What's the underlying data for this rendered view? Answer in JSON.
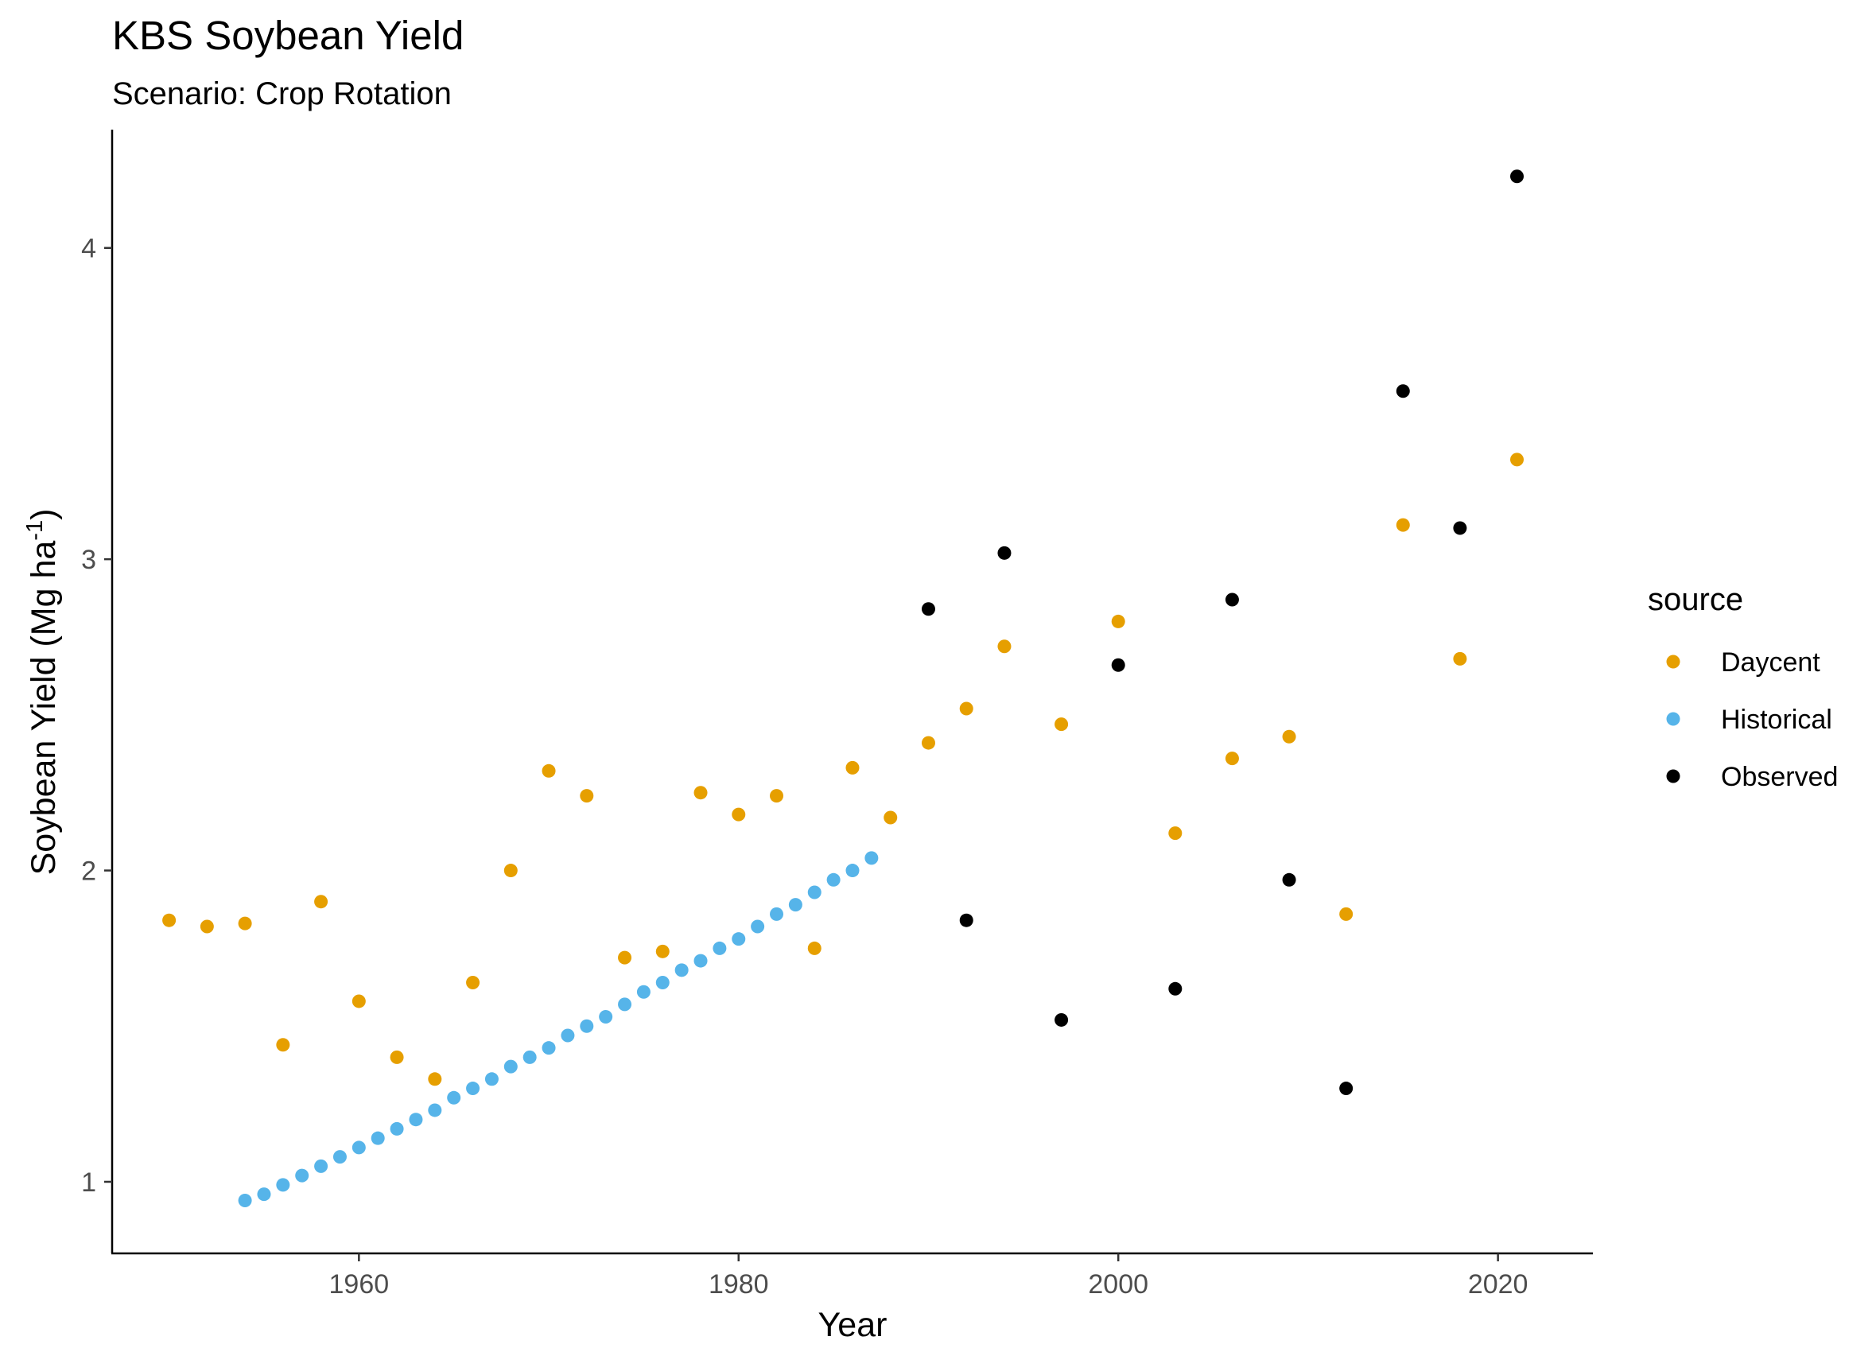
{
  "chart_data": {
    "type": "scatter",
    "title": "KBS Soybean Yield",
    "subtitle": "Scenario: Crop Rotation",
    "xlabel": "Year",
    "ylabel": {
      "main": "Soybean Yield (Mg ha",
      "superscript": "-1",
      "close": ")"
    },
    "xlim": [
      1947,
      2025
    ],
    "ylim": [
      0.77,
      4.38
    ],
    "xticks": [
      1960,
      1980,
      2000,
      2020
    ],
    "yticks": [
      1,
      2,
      3,
      4
    ],
    "grid": false,
    "legend": {
      "title": "source",
      "position": "right"
    },
    "series": [
      {
        "name": "Daycent",
        "color": "#E69F00",
        "points": [
          [
            1950,
            1.84
          ],
          [
            1952,
            1.82
          ],
          [
            1954,
            1.83
          ],
          [
            1956,
            1.44
          ],
          [
            1958,
            1.9
          ],
          [
            1960,
            1.58
          ],
          [
            1962,
            1.4
          ],
          [
            1964,
            1.33
          ],
          [
            1966,
            1.64
          ],
          [
            1968,
            2.0
          ],
          [
            1970,
            2.32
          ],
          [
            1972,
            2.24
          ],
          [
            1974,
            1.72
          ],
          [
            1976,
            1.74
          ],
          [
            1978,
            2.25
          ],
          [
            1980,
            2.18
          ],
          [
            1982,
            2.24
          ],
          [
            1984,
            1.75
          ],
          [
            1986,
            2.33
          ],
          [
            1988,
            2.17
          ],
          [
            1990,
            2.41
          ],
          [
            1992,
            2.52
          ],
          [
            1994,
            2.72
          ],
          [
            1997,
            2.47
          ],
          [
            2000,
            2.8
          ],
          [
            2003,
            2.12
          ],
          [
            2006,
            2.36
          ],
          [
            2009,
            2.43
          ],
          [
            2012,
            1.86
          ],
          [
            2015,
            3.11
          ],
          [
            2018,
            2.68
          ],
          [
            2021,
            3.32
          ]
        ]
      },
      {
        "name": "Historical",
        "color": "#56B4E9",
        "points": [
          [
            1954,
            0.94
          ],
          [
            1955,
            0.96
          ],
          [
            1956,
            0.99
          ],
          [
            1957,
            1.02
          ],
          [
            1958,
            1.05
          ],
          [
            1959,
            1.08
          ],
          [
            1960,
            1.11
          ],
          [
            1961,
            1.14
          ],
          [
            1962,
            1.17
          ],
          [
            1963,
            1.2
          ],
          [
            1964,
            1.23
          ],
          [
            1965,
            1.27
          ],
          [
            1966,
            1.3
          ],
          [
            1967,
            1.33
          ],
          [
            1968,
            1.37
          ],
          [
            1969,
            1.4
          ],
          [
            1970,
            1.43
          ],
          [
            1971,
            1.47
          ],
          [
            1972,
            1.5
          ],
          [
            1973,
            1.53
          ],
          [
            1974,
            1.57
          ],
          [
            1975,
            1.61
          ],
          [
            1976,
            1.64
          ],
          [
            1977,
            1.68
          ],
          [
            1978,
            1.71
          ],
          [
            1979,
            1.75
          ],
          [
            1980,
            1.78
          ],
          [
            1981,
            1.82
          ],
          [
            1982,
            1.86
          ],
          [
            1983,
            1.89
          ],
          [
            1984,
            1.93
          ],
          [
            1985,
            1.97
          ],
          [
            1986,
            2.0
          ],
          [
            1987,
            2.04
          ]
        ]
      },
      {
        "name": "Observed",
        "color": "#000000",
        "points": [
          [
            1990,
            2.84
          ],
          [
            1992,
            1.84
          ],
          [
            1994,
            3.02
          ],
          [
            1997,
            1.52
          ],
          [
            2000,
            2.66
          ],
          [
            2003,
            1.62
          ],
          [
            2006,
            2.87
          ],
          [
            2009,
            1.97
          ],
          [
            2012,
            1.3
          ],
          [
            2015,
            3.54
          ],
          [
            2018,
            3.1
          ],
          [
            2021,
            4.23
          ]
        ]
      }
    ]
  }
}
